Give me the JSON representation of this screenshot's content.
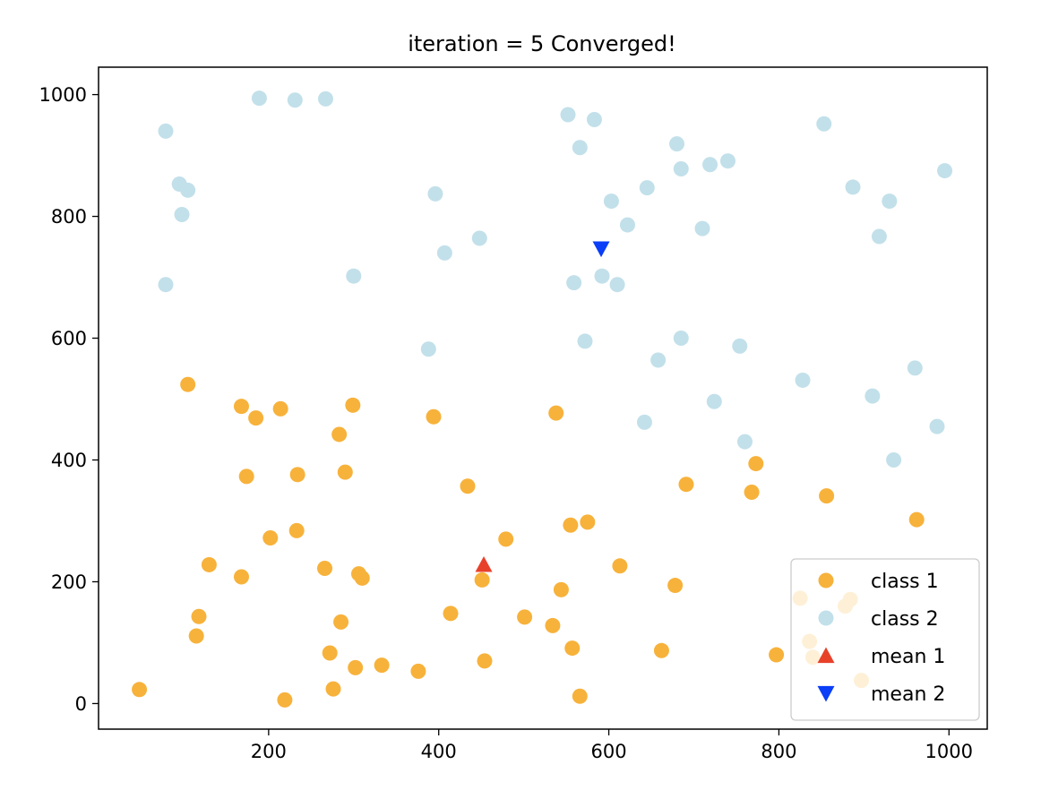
{
  "chart_data": {
    "type": "scatter",
    "title": "iteration = 5 Converged!",
    "xlabel": "",
    "ylabel": "",
    "xlim": [
      0,
      1045
    ],
    "ylim": [
      -42,
      1045
    ],
    "xticks": [
      200,
      400,
      600,
      800,
      1000
    ],
    "yticks": [
      0,
      200,
      400,
      600,
      800,
      1000
    ],
    "grid": false,
    "legend_position": "lower right",
    "series": [
      {
        "name": "class 1",
        "marker": "circle",
        "color": "#f7b23b",
        "points": [
          [
            48,
            23
          ],
          [
            105,
            524
          ],
          [
            118,
            143
          ],
          [
            115,
            111
          ],
          [
            130,
            228
          ],
          [
            168,
            488
          ],
          [
            168,
            208
          ],
          [
            174,
            373
          ],
          [
            185,
            469
          ],
          [
            202,
            272
          ],
          [
            214,
            484
          ],
          [
            219,
            6
          ],
          [
            233,
            284
          ],
          [
            234,
            376
          ],
          [
            266,
            222
          ],
          [
            272,
            83
          ],
          [
            276,
            24
          ],
          [
            283,
            442
          ],
          [
            285,
            134
          ],
          [
            290,
            380
          ],
          [
            299,
            490
          ],
          [
            302,
            59
          ],
          [
            306,
            213
          ],
          [
            310,
            206
          ],
          [
            333,
            63
          ],
          [
            376,
            53
          ],
          [
            394,
            471
          ],
          [
            414,
            148
          ],
          [
            434,
            357
          ],
          [
            451,
            203
          ],
          [
            454,
            70
          ],
          [
            479,
            270
          ],
          [
            501,
            142
          ],
          [
            534,
            128
          ],
          [
            538,
            477
          ],
          [
            544,
            187
          ],
          [
            555,
            293
          ],
          [
            557,
            91
          ],
          [
            566,
            12
          ],
          [
            575,
            298
          ],
          [
            613,
            226
          ],
          [
            662,
            87
          ],
          [
            678,
            194
          ],
          [
            691,
            360
          ],
          [
            768,
            347
          ],
          [
            773,
            394
          ],
          [
            797,
            80
          ],
          [
            856,
            341
          ],
          [
            962,
            302
          ],
          [
            825,
            173
          ],
          [
            836,
            102
          ],
          [
            840,
            76
          ],
          [
            878,
            160
          ],
          [
            884,
            171
          ],
          [
            897,
            38
          ]
        ]
      },
      {
        "name": "class 2",
        "marker": "circle",
        "color": "#c2e0ea",
        "points": [
          [
            79,
            940
          ],
          [
            95,
            853
          ],
          [
            105,
            843
          ],
          [
            98,
            803
          ],
          [
            79,
            688
          ],
          [
            189,
            994
          ],
          [
            231,
            991
          ],
          [
            267,
            993
          ],
          [
            300,
            702
          ],
          [
            388,
            582
          ],
          [
            396,
            837
          ],
          [
            407,
            740
          ],
          [
            448,
            764
          ],
          [
            552,
            967
          ],
          [
            566,
            913
          ],
          [
            583,
            959
          ],
          [
            559,
            691
          ],
          [
            572,
            595
          ],
          [
            592,
            702
          ],
          [
            603,
            825
          ],
          [
            610,
            688
          ],
          [
            622,
            786
          ],
          [
            642,
            462
          ],
          [
            645,
            847
          ],
          [
            658,
            564
          ],
          [
            680,
            919
          ],
          [
            685,
            878
          ],
          [
            685,
            600
          ],
          [
            710,
            780
          ],
          [
            719,
            885
          ],
          [
            724,
            496
          ],
          [
            740,
            891
          ],
          [
            754,
            587
          ],
          [
            760,
            430
          ],
          [
            828,
            531
          ],
          [
            853,
            952
          ],
          [
            887,
            848
          ],
          [
            910,
            505
          ],
          [
            918,
            767
          ],
          [
            930,
            825
          ],
          [
            935,
            400
          ],
          [
            960,
            551
          ],
          [
            986,
            455
          ],
          [
            995,
            875
          ]
        ]
      },
      {
        "name": "mean 1",
        "marker": "triangle-up",
        "color": "#e8412a",
        "points": [
          [
            453,
            228
          ]
        ]
      },
      {
        "name": "mean 2",
        "marker": "triangle-down",
        "color": "#0a3ef7",
        "points": [
          [
            591,
            747
          ]
        ]
      }
    ],
    "legend": [
      {
        "label": "class 1",
        "marker": "circle",
        "color": "#f7b23b"
      },
      {
        "label": "class 2",
        "marker": "circle",
        "color": "#c2e0ea"
      },
      {
        "label": "mean 1",
        "marker": "triangle-up",
        "color": "#e8412a"
      },
      {
        "label": "mean 2",
        "marker": "triangle-down",
        "color": "#0a3ef7"
      }
    ]
  }
}
